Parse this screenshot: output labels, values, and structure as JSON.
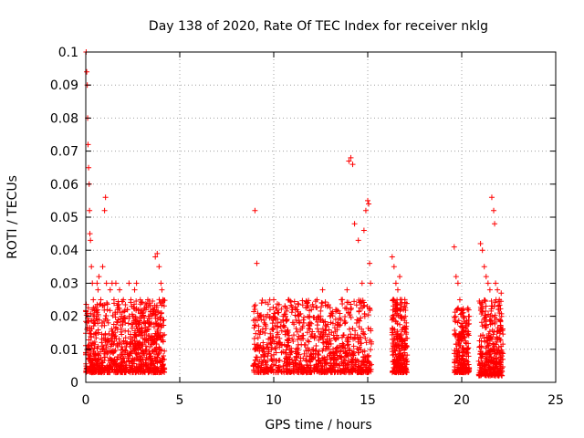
{
  "chart_data": {
    "type": "scatter",
    "title": "Day 138 of 2020, Rate Of TEC Index for receiver nklg",
    "xlabel": "GPS time / hours",
    "ylabel": "ROTI / TECUs",
    "xlim": [
      0,
      25
    ],
    "ylim": [
      0,
      0.1
    ],
    "xticks": [
      "0",
      "5",
      "10",
      "15",
      "20",
      "25"
    ],
    "yticks": [
      "0",
      "0.01",
      "0.02",
      "0.03",
      "0.04",
      "0.05",
      "0.06",
      "0.07",
      "0.08",
      "0.09",
      "0.1"
    ],
    "grid": true,
    "marker": "plus",
    "color": "#ff0000",
    "series": [
      {
        "x": [
          0.02,
          0.05,
          0.08,
          0.1,
          0.12,
          0.15,
          0.18,
          0.2,
          0.22,
          0.25,
          0.3,
          0.35,
          0.4,
          0.45,
          0.5,
          0.55,
          0.6,
          0.65,
          0.7,
          0.8,
          0.9,
          1.0,
          1.05,
          1.1,
          1.15,
          1.2,
          1.3,
          1.4,
          1.5,
          1.6,
          1.7,
          1.8,
          1.9,
          2.0,
          2.1,
          2.2,
          2.3,
          2.4,
          2.5,
          2.6,
          2.7,
          2.8,
          2.9,
          3.0,
          3.1,
          3.2,
          3.3,
          3.4,
          3.5,
          3.6,
          3.7,
          3.8,
          3.9,
          4.0,
          4.05,
          4.1,
          9.0,
          9.1,
          9.3,
          9.5,
          9.8,
          10.0,
          10.2,
          10.5,
          10.8,
          11.0,
          11.3,
          11.6,
          12.0,
          12.3,
          12.6,
          13.0,
          13.3,
          13.6,
          13.9,
          14.0,
          14.1,
          14.2,
          14.3,
          14.5,
          14.7,
          14.8,
          14.9,
          15.0,
          15.05,
          15.1,
          15.15,
          16.3,
          16.4,
          16.5,
          16.6,
          16.7,
          16.8,
          16.9,
          17.0,
          17.05,
          19.6,
          19.7,
          19.8,
          19.9,
          20.0,
          20.1,
          20.2,
          20.3,
          20.4,
          21.0,
          21.1,
          21.2,
          21.3,
          21.4,
          21.5,
          21.6,
          21.7,
          21.75,
          21.8,
          21.9,
          22.0,
          22.1
        ],
        "y": [
          0.1,
          0.094,
          0.09,
          0.08,
          0.072,
          0.065,
          0.06,
          0.052,
          0.045,
          0.043,
          0.035,
          0.03,
          0.025,
          0.02,
          0.018,
          0.015,
          0.03,
          0.028,
          0.032,
          0.025,
          0.035,
          0.052,
          0.056,
          0.03,
          0.022,
          0.018,
          0.028,
          0.03,
          0.025,
          0.03,
          0.022,
          0.028,
          0.02,
          0.025,
          0.018,
          0.022,
          0.03,
          0.025,
          0.02,
          0.028,
          0.03,
          0.022,
          0.025,
          0.02,
          0.018,
          0.022,
          0.025,
          0.02,
          0.018,
          0.022,
          0.038,
          0.039,
          0.035,
          0.03,
          0.028,
          0.025,
          0.052,
          0.036,
          0.02,
          0.018,
          0.022,
          0.025,
          0.018,
          0.02,
          0.025,
          0.022,
          0.02,
          0.018,
          0.022,
          0.025,
          0.028,
          0.02,
          0.022,
          0.025,
          0.028,
          0.067,
          0.068,
          0.066,
          0.048,
          0.043,
          0.03,
          0.046,
          0.052,
          0.055,
          0.054,
          0.036,
          0.03,
          0.038,
          0.035,
          0.03,
          0.028,
          0.032,
          0.025,
          0.022,
          0.02,
          0.018,
          0.041,
          0.032,
          0.03,
          0.025,
          0.022,
          0.02,
          0.018,
          0.022,
          0.02,
          0.042,
          0.04,
          0.035,
          0.032,
          0.03,
          0.028,
          0.056,
          0.052,
          0.048,
          0.03,
          0.028,
          0.025,
          0.027
        ]
      }
    ]
  }
}
